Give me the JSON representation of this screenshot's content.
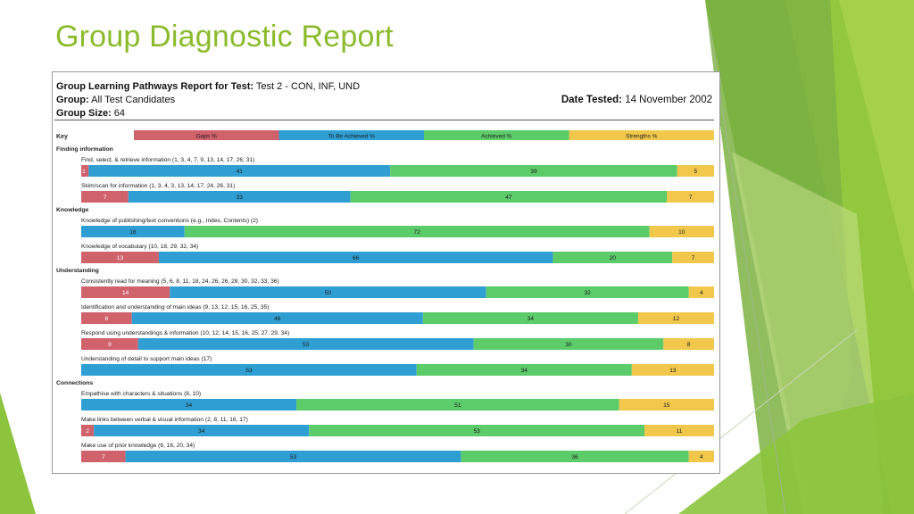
{
  "slide": {
    "title": "Group Diagnostic Report"
  },
  "report": {
    "label_test": "Group Learning Pathways Report for Test:",
    "test": "Test 2 - CON, INF, UND",
    "label_group": "Group:",
    "group": "All Test Candidates",
    "label_size": "Group Size:",
    "size": "64",
    "label_date": "Date Tested:",
    "date": "14 November 2002"
  },
  "colors": {
    "gaps": "#d0626c",
    "to_be": "#2f9fd3",
    "achieved": "#5ccb6a",
    "strengths": "#f1c84c",
    "accent": "#8bbb2c"
  },
  "chart_data": {
    "type": "bar",
    "orientation": "horizontal-stacked-100",
    "key_label": "Key",
    "series": [
      {
        "name": "Gaps %"
      },
      {
        "name": "To Be Achieved %"
      },
      {
        "name": "Achieved %"
      },
      {
        "name": "Strengths %"
      }
    ],
    "groups": [
      {
        "name": "Finding information",
        "items": [
          {
            "label": "Find, select, & retrieve information (1, 3, 4, 7, 9, 13, 14, 17, 26, 31)",
            "values": [
              1,
              41,
              39,
              5
            ]
          },
          {
            "label": "Skim/scan for information (1, 3, 4, 3, 13, 14, 17, 24, 26, 31)",
            "values": [
              7,
              33,
              47,
              7
            ]
          }
        ]
      },
      {
        "name": "Knowledge",
        "items": [
          {
            "label": "Knowledge of publishing/text conventions (e.g., Index, Contents) (2)",
            "values": [
              0,
              16,
              72,
              10
            ]
          },
          {
            "label": "Knowledge of vocabulary (10, 18, 29, 32, 34)",
            "values": [
              13,
              66,
              20,
              7
            ]
          }
        ]
      },
      {
        "name": "Understanding",
        "items": [
          {
            "label": "Consistently read for meaning (5, 6, 8, 11, 18, 24, 26, 26, 28, 30, 32, 33, 36)",
            "values": [
              14,
              50,
              32,
              4
            ]
          },
          {
            "label": "Identification and understanding of main ideas (9, 13, 12, 15, 16, 25, 35)",
            "values": [
              8,
              46,
              34,
              12
            ]
          },
          {
            "label": "Respond using understandings & information (10, 12, 14, 15, 16, 25, 27, 29, 34)",
            "values": [
              9,
              53,
              30,
              8
            ]
          },
          {
            "label": "Understanding of detail to support main ideas (17)",
            "values": [
              0,
              53,
              34,
              13
            ]
          }
        ]
      },
      {
        "name": "Connections",
        "items": [
          {
            "label": "Empathise with characters & situations (8, 10)",
            "values": [
              0,
              34,
              51,
              15
            ]
          },
          {
            "label": "Make links between verbal & visual information (2, 8, 11, 16, 17)",
            "values": [
              2,
              34,
              53,
              11
            ]
          },
          {
            "label": "Make use of prior knowledge (6, 16, 20, 34)",
            "values": [
              7,
              53,
              36,
              4
            ]
          }
        ]
      }
    ]
  }
}
